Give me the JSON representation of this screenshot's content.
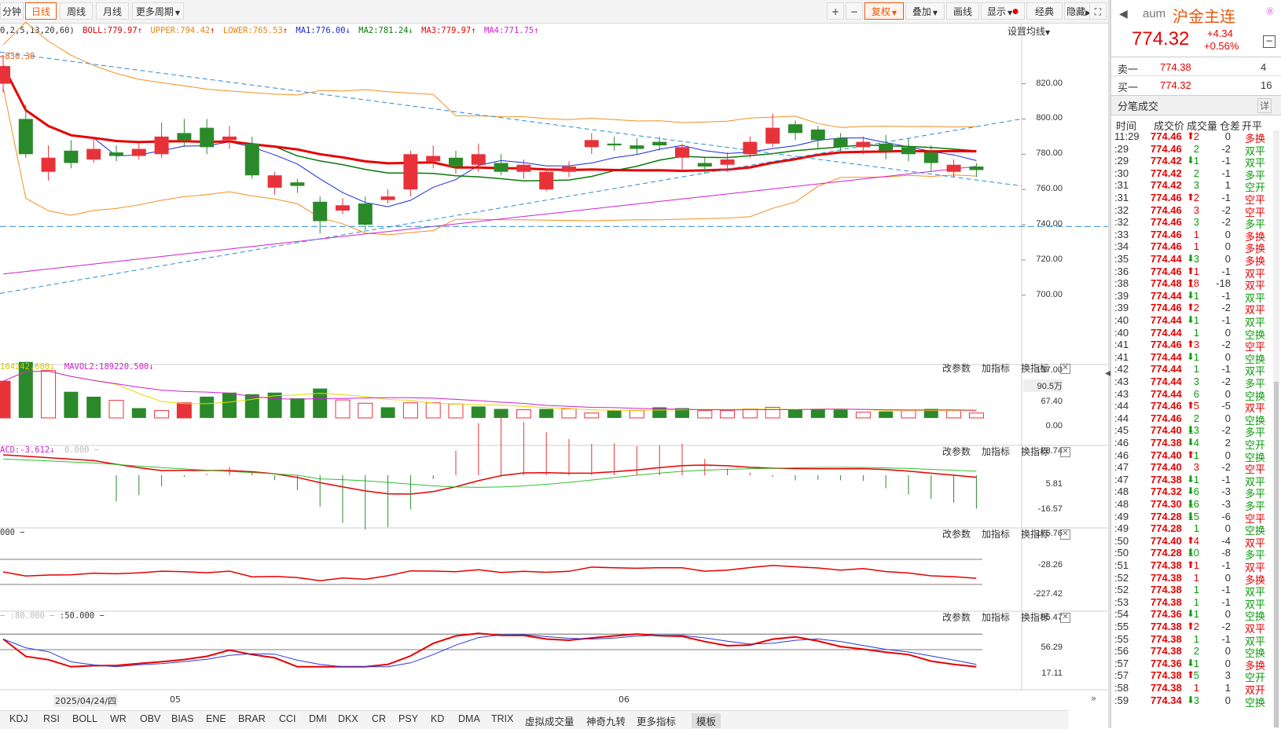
{
  "toolbar": {
    "items": [
      {
        "label": "分钟",
        "key": "min"
      },
      {
        "label": "日线",
        "key": "day"
      },
      {
        "label": "周线",
        "key": "week"
      },
      {
        "label": "月线",
        "key": "month"
      },
      {
        "label": "更多周期",
        "key": "more"
      }
    ],
    "right_items": [
      {
        "label": "复权",
        "key": "fq"
      },
      {
        "label": "叠加",
        "key": "dj"
      },
      {
        "label": "画线",
        "key": "hx"
      },
      {
        "label": "显示",
        "key": "xs"
      },
      {
        "label": "经典",
        "key": "jd"
      },
      {
        "label": "隐藏",
        "key": "yc"
      }
    ]
  },
  "main_indicator": {
    "params": "0,2,5,13,20,60)",
    "boll": "BOLL:779.97",
    "upper": "UPPER:794.42",
    "lower": "LOWER:765.53",
    "ma1": "MA1:776.00",
    "ma2": "MA2:781.24",
    "ma3": "MA3:779.97",
    "ma4": "MA4:771.75",
    "setting": "设置均线",
    "high_mark": "836.30"
  },
  "price_axis": [
    "820.00",
    "800.00",
    "780.00",
    "760.00",
    "740.00",
    "720.00",
    "700.00"
  ],
  "vol_panel": {
    "line": "164242.600",
    "mavol2": "MAVOL2:189220.500",
    "axis": [
      "137.00",
      "90.5万",
      "67.40",
      "0.00"
    ]
  },
  "macd_panel": {
    "line": "ACD:-3.612",
    "extra": "0.000",
    "axis": [
      "28.74",
      "5.81",
      "-16.57"
    ]
  },
  "cci_panel": {
    "line": "000",
    "axis": [
      "175.76",
      "-28.26",
      "-227.42"
    ]
  },
  "kd_panel": {
    "line_a": ":80.000",
    "line_b": ":50.000",
    "axis": [
      "95.47",
      "56.29",
      "17.11"
    ]
  },
  "panel_controls": {
    "edit": "改参数",
    "add": "加指标",
    "swap": "换指标"
  },
  "date_axis": {
    "date": "2025/04/24/四",
    "m05": "05",
    "m06": "06"
  },
  "bottom_tabs": [
    "KDJ",
    "RSI",
    "BOLL",
    "WR",
    "OBV",
    "BIAS",
    "ENE",
    "BRAR",
    "CCI",
    "DMI",
    "DKX",
    "CR",
    "PSY",
    "KD",
    "DMA",
    "TRIX",
    "虚拟成交量",
    "神奇九转",
    "更多指标",
    "模板"
  ],
  "quote": {
    "code": "aum",
    "name": "沪金主连",
    "price": "774.32",
    "change": "+4.34",
    "change_pct": "+0.56%",
    "sell_label": "卖一",
    "sell_price": "774.38",
    "sell_vol": "4",
    "buy_label": "买一",
    "buy_price": "774.32",
    "buy_vol": "16",
    "ticks_title": "分笔成交",
    "ticks_detail": "详",
    "headers": [
      "时间",
      "成交价",
      "成交量",
      "仓差",
      "开平"
    ]
  },
  "ticks": [
    [
      "11:29",
      "774.46",
      "up",
      "2",
      "0",
      "多换",
      "r"
    ],
    [
      ":29",
      "774.46",
      "",
      "2",
      "-2",
      "双平",
      "g"
    ],
    [
      ":29",
      "774.42",
      "down",
      "1",
      "-1",
      "双平",
      "g"
    ],
    [
      ":30",
      "774.42",
      "",
      "2",
      "-1",
      "多平",
      "g"
    ],
    [
      ":31",
      "774.42",
      "",
      "3",
      "1",
      "空开",
      "g"
    ],
    [
      ":31",
      "774.46",
      "up",
      "2",
      "-1",
      "空平",
      "r"
    ],
    [
      ":32",
      "774.46",
      "",
      "3",
      "-2",
      "空平",
      "r"
    ],
    [
      ":32",
      "774.46",
      "",
      "3",
      "-2",
      "多平",
      "g"
    ],
    [
      ":33",
      "774.46",
      "",
      "1",
      "0",
      "多换",
      "r"
    ],
    [
      ":34",
      "774.46",
      "",
      "1",
      "0",
      "多换",
      "r"
    ],
    [
      ":35",
      "774.44",
      "down",
      "3",
      "0",
      "多换",
      "r"
    ],
    [
      ":36",
      "774.46",
      "up",
      "1",
      "-1",
      "双平",
      "r"
    ],
    [
      ":38",
      "774.48",
      "up",
      "18",
      "-18",
      "双平",
      "r"
    ],
    [
      ":39",
      "774.44",
      "down",
      "1",
      "-1",
      "双平",
      "g"
    ],
    [
      ":39",
      "774.46",
      "up",
      "2",
      "-2",
      "双平",
      "r"
    ],
    [
      ":40",
      "774.44",
      "down",
      "1",
      "-1",
      "双平",
      "g"
    ],
    [
      ":40",
      "774.44",
      "",
      "1",
      "0",
      "空换",
      "g"
    ],
    [
      ":41",
      "774.46",
      "up",
      "3",
      "-2",
      "空平",
      "r"
    ],
    [
      ":41",
      "774.44",
      "down",
      "1",
      "0",
      "空换",
      "g"
    ],
    [
      ":42",
      "774.44",
      "",
      "1",
      "-1",
      "双平",
      "g"
    ],
    [
      ":43",
      "774.44",
      "",
      "3",
      "-2",
      "多平",
      "g"
    ],
    [
      ":43",
      "774.44",
      "",
      "6",
      "0",
      "空换",
      "g"
    ],
    [
      ":44",
      "774.46",
      "up",
      "5",
      "-5",
      "双平",
      "r"
    ],
    [
      ":44",
      "774.46",
      "",
      "2",
      "0",
      "空换",
      "g"
    ],
    [
      ":45",
      "774.40",
      "down",
      "13",
      "-2",
      "多平",
      "g"
    ],
    [
      ":46",
      "774.38",
      "down",
      "4",
      "2",
      "空开",
      "g"
    ],
    [
      ":46",
      "774.40",
      "up",
      "1",
      "0",
      "空换",
      "g"
    ],
    [
      ":47",
      "774.40",
      "",
      "3",
      "-2",
      "空平",
      "r"
    ],
    [
      ":47",
      "774.38",
      "down",
      "1",
      "-1",
      "双平",
      "g"
    ],
    [
      ":48",
      "774.32",
      "down",
      "6",
      "-3",
      "多平",
      "g"
    ],
    [
      ":48",
      "774.30",
      "down",
      "16",
      "-3",
      "多平",
      "g"
    ],
    [
      ":49",
      "774.28",
      "down",
      "15",
      "-6",
      "空平",
      "r"
    ],
    [
      ":49",
      "774.28",
      "",
      "1",
      "0",
      "空换",
      "g"
    ],
    [
      ":50",
      "774.40",
      "up",
      "4",
      "-4",
      "双平",
      "r"
    ],
    [
      ":50",
      "774.28",
      "down",
      "10",
      "-8",
      "多平",
      "g"
    ],
    [
      ":51",
      "774.38",
      "up",
      "1",
      "-1",
      "双平",
      "r"
    ],
    [
      ":52",
      "774.38",
      "",
      "1",
      "0",
      "多换",
      "r"
    ],
    [
      ":52",
      "774.38",
      "",
      "1",
      "-1",
      "双平",
      "g"
    ],
    [
      ":53",
      "774.38",
      "",
      "1",
      "-1",
      "双平",
      "g"
    ],
    [
      ":54",
      "774.36",
      "down",
      "1",
      "0",
      "空换",
      "g"
    ],
    [
      ":55",
      "774.38",
      "up",
      "2",
      "-2",
      "双平",
      "r"
    ],
    [
      ":55",
      "774.38",
      "",
      "1",
      "-1",
      "双平",
      "g"
    ],
    [
      ":56",
      "774.38",
      "",
      "2",
      "0",
      "空换",
      "g"
    ],
    [
      ":57",
      "774.36",
      "down",
      "1",
      "0",
      "多换",
      "r"
    ],
    [
      ":57",
      "774.38",
      "up",
      "5",
      "3",
      "空开",
      "g"
    ],
    [
      ":58",
      "774.38",
      "",
      "1",
      "1",
      "双开",
      "r"
    ],
    [
      ":59",
      "774.34",
      "down",
      "3",
      "0",
      "空换",
      "g"
    ]
  ],
  "candles": [
    [
      820,
      830,
      836.3,
      815
    ],
    [
      800,
      780,
      808,
      778
    ],
    [
      770,
      778,
      785,
      765
    ],
    [
      782,
      775,
      788,
      772
    ],
    [
      777,
      783,
      790,
      775
    ],
    [
      781,
      779,
      785,
      776
    ],
    [
      779,
      783,
      786,
      777
    ],
    [
      780,
      790,
      798,
      778
    ],
    [
      792,
      788,
      800,
      784
    ],
    [
      795,
      784,
      800,
      780
    ],
    [
      788,
      790,
      796,
      783
    ],
    [
      786,
      768,
      790,
      766
    ],
    [
      761,
      768,
      770,
      757
    ],
    [
      764,
      762,
      766,
      758
    ],
    [
      753,
      742,
      756,
      735
    ],
    [
      748,
      751,
      755,
      746
    ],
    [
      752,
      740,
      756,
      737
    ],
    [
      754,
      756,
      760,
      752
    ],
    [
      760,
      780,
      782,
      756
    ],
    [
      776,
      779,
      785,
      772
    ],
    [
      778,
      773,
      782,
      769
    ],
    [
      774,
      780,
      786,
      770
    ],
    [
      775,
      770,
      780,
      768
    ],
    [
      770,
      774,
      777,
      766
    ],
    [
      760,
      770,
      772,
      759
    ],
    [
      770,
      773,
      776,
      767
    ],
    [
      784,
      788,
      792,
      780
    ],
    [
      786,
      785,
      790,
      782
    ],
    [
      785,
      783,
      789,
      780
    ],
    [
      787,
      785,
      790,
      782
    ],
    [
      778,
      784,
      786,
      770
    ],
    [
      775,
      773,
      778,
      769
    ],
    [
      774,
      777,
      781,
      770
    ],
    [
      780,
      787,
      790,
      778
    ],
    [
      786,
      795,
      803,
      784
    ],
    [
      797,
      792,
      799,
      788
    ],
    [
      794,
      788,
      796,
      783
    ],
    [
      789,
      784,
      792,
      781
    ],
    [
      784,
      787,
      790,
      780
    ],
    [
      786,
      782,
      791,
      777
    ],
    [
      784,
      780,
      789,
      776
    ],
    [
      781,
      775,
      785,
      770
    ],
    [
      770,
      774,
      777,
      767
    ],
    [
      773,
      771,
      775,
      767
    ]
  ],
  "volumes": [
    [
      90,
      "r"
    ],
    [
      137,
      "g"
    ],
    [
      116,
      "r"
    ],
    [
      64,
      "g"
    ],
    [
      52,
      "g"
    ],
    [
      43,
      "r"
    ],
    [
      24,
      "g"
    ],
    [
      18,
      "r"
    ],
    [
      37,
      "r"
    ],
    [
      52,
      "g"
    ],
    [
      62,
      "g"
    ],
    [
      58,
      "g"
    ],
    [
      62,
      "g"
    ],
    [
      48,
      "g"
    ],
    [
      72,
      "g"
    ],
    [
      44,
      "r"
    ],
    [
      36,
      "r"
    ],
    [
      26,
      "g"
    ],
    [
      37,
      "r"
    ],
    [
      37,
      "r"
    ],
    [
      34,
      "r"
    ],
    [
      28,
      "g"
    ],
    [
      22,
      "g"
    ],
    [
      20,
      "r"
    ],
    [
      22,
      "g"
    ],
    [
      22,
      "r"
    ],
    [
      12,
      "r"
    ],
    [
      18,
      "g"
    ],
    [
      18,
      "r"
    ],
    [
      26,
      "g"
    ],
    [
      24,
      "g"
    ],
    [
      18,
      "r"
    ],
    [
      18,
      "r"
    ],
    [
      22,
      "r"
    ],
    [
      26,
      "r"
    ],
    [
      20,
      "g"
    ],
    [
      22,
      "g"
    ],
    [
      20,
      "g"
    ],
    [
      14,
      "r"
    ],
    [
      16,
      "g"
    ],
    [
      18,
      "r"
    ],
    [
      22,
      "g"
    ],
    [
      18,
      "r"
    ],
    [
      12,
      "r"
    ]
  ],
  "colors": {
    "up": "#e8323a",
    "down": "#2a8a2a",
    "accent": "#e8590c",
    "grid": "#e6e6e6"
  }
}
